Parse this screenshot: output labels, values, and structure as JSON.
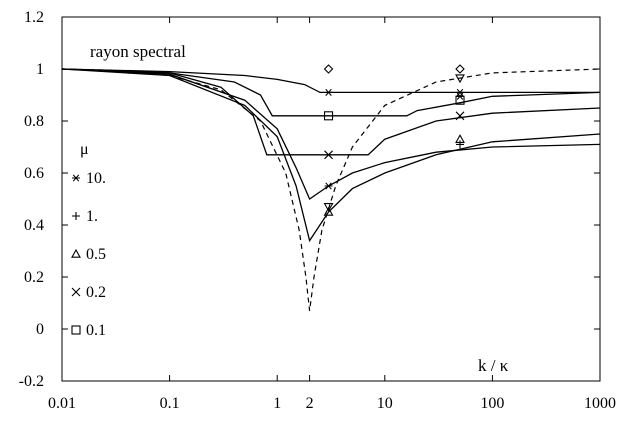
{
  "chart_data": {
    "type": "line",
    "title": "",
    "xlabel": "k / κ",
    "ylabel": "",
    "xscale": "log",
    "xlim": [
      0.01,
      1000
    ],
    "ylim": [
      -0.2,
      1.2
    ],
    "grid": false,
    "x_ticks": [
      {
        "value": 0.01,
        "label": "0.01"
      },
      {
        "value": 0.1,
        "label": "0.1"
      },
      {
        "value": 1,
        "label": "1"
      },
      {
        "value": 2,
        "label": "2"
      },
      {
        "value": 10,
        "label": "10"
      },
      {
        "value": 100,
        "label": "100"
      },
      {
        "value": 1000,
        "label": "1000"
      }
    ],
    "y_ticks": [
      {
        "value": -0.2,
        "label": "-0.2"
      },
      {
        "value": 0,
        "label": "0"
      },
      {
        "value": 0.2,
        "label": "0.2"
      },
      {
        "value": 0.4,
        "label": "0.4"
      },
      {
        "value": 0.6,
        "label": "0.6"
      },
      {
        "value": 0.8,
        "label": "0.8"
      },
      {
        "value": 1,
        "label": "1"
      },
      {
        "value": 1.2,
        "label": "1.2"
      }
    ],
    "annotation": "rayon spectral",
    "legend_title": "μ",
    "legend": [
      {
        "symbol": "star",
        "label": "10."
      },
      {
        "symbol": "plus",
        "label": "1."
      },
      {
        "symbol": "triangle",
        "label": "0.5"
      },
      {
        "symbol": "cross",
        "label": "0.2"
      },
      {
        "symbol": "square",
        "label": "0.1"
      }
    ],
    "series": [
      {
        "style": "dashed",
        "points": [
          [
            0.01,
            1.0
          ],
          [
            0.03,
            0.995
          ],
          [
            0.1,
            0.975
          ],
          [
            0.3,
            0.92
          ],
          [
            0.7,
            0.8
          ],
          [
            1.2,
            0.6
          ],
          [
            1.6,
            0.38
          ],
          [
            1.85,
            0.2
          ],
          [
            2.0,
            0.07
          ],
          [
            2.2,
            0.2
          ],
          [
            2.6,
            0.38
          ],
          [
            3.5,
            0.55
          ],
          [
            5,
            0.7
          ],
          [
            10,
            0.86
          ],
          [
            30,
            0.95
          ],
          [
            100,
            0.985
          ],
          [
            1000,
            1.0
          ]
        ]
      },
      {
        "style": "solid",
        "points": [
          [
            0.01,
            1.0
          ],
          [
            0.1,
            0.99
          ],
          [
            0.5,
            0.975
          ],
          [
            1.0,
            0.96
          ],
          [
            1.8,
            0.94
          ],
          [
            2.5,
            0.91
          ],
          [
            1000,
            0.91
          ]
        ]
      },
      {
        "style": "solid",
        "points": [
          [
            0.01,
            1.0
          ],
          [
            0.1,
            0.985
          ],
          [
            0.4,
            0.95
          ],
          [
            0.7,
            0.9
          ],
          [
            0.9,
            0.82
          ],
          [
            16,
            0.82
          ],
          [
            20,
            0.84
          ],
          [
            50,
            0.87
          ],
          [
            100,
            0.895
          ],
          [
            1000,
            0.91
          ]
        ]
      },
      {
        "style": "solid",
        "points": [
          [
            0.01,
            1.0
          ],
          [
            0.1,
            0.985
          ],
          [
            0.3,
            0.93
          ],
          [
            0.6,
            0.82
          ],
          [
            0.8,
            0.67
          ],
          [
            7,
            0.67
          ],
          [
            10,
            0.73
          ],
          [
            30,
            0.8
          ],
          [
            100,
            0.83
          ],
          [
            1000,
            0.85
          ]
        ]
      },
      {
        "style": "solid",
        "points": [
          [
            0.01,
            1.0
          ],
          [
            0.1,
            0.98
          ],
          [
            0.5,
            0.88
          ],
          [
            1.0,
            0.77
          ],
          [
            1.5,
            0.62
          ],
          [
            2.0,
            0.5
          ],
          [
            3,
            0.55
          ],
          [
            5,
            0.6
          ],
          [
            10,
            0.64
          ],
          [
            30,
            0.68
          ],
          [
            100,
            0.7
          ],
          [
            1000,
            0.71
          ]
        ]
      },
      {
        "style": "solid",
        "points": [
          [
            0.01,
            1.0
          ],
          [
            0.1,
            0.975
          ],
          [
            0.5,
            0.86
          ],
          [
            1.0,
            0.74
          ],
          [
            1.5,
            0.55
          ],
          [
            2.0,
            0.34
          ],
          [
            3,
            0.45
          ],
          [
            5,
            0.54
          ],
          [
            10,
            0.6
          ],
          [
            30,
            0.67
          ],
          [
            100,
            0.72
          ],
          [
            1000,
            0.75
          ]
        ]
      }
    ],
    "markers": [
      {
        "symbol": "diamond",
        "x": 3,
        "y": 1.0
      },
      {
        "symbol": "diamond",
        "x": 50,
        "y": 1.0
      },
      {
        "symbol": "star",
        "x": 3,
        "y": 0.91
      },
      {
        "symbol": "star",
        "x": 50,
        "y": 0.91
      },
      {
        "symbol": "invtriangle",
        "x": 50,
        "y": 0.965
      },
      {
        "symbol": "square",
        "x": 3,
        "y": 0.82
      },
      {
        "symbol": "square",
        "x": 50,
        "y": 0.88
      },
      {
        "symbol": "star",
        "x": 50,
        "y": 0.895
      },
      {
        "symbol": "cross",
        "x": 3,
        "y": 0.67
      },
      {
        "symbol": "cross",
        "x": 50,
        "y": 0.82
      },
      {
        "symbol": "star",
        "x": 3,
        "y": 0.55
      },
      {
        "symbol": "plus",
        "x": 50,
        "y": 0.71
      },
      {
        "symbol": "triangle",
        "x": 50,
        "y": 0.73
      },
      {
        "symbol": "triangle",
        "x": 3,
        "y": 0.45
      },
      {
        "symbol": "invtriangle",
        "x": 3,
        "y": 0.47
      }
    ]
  }
}
